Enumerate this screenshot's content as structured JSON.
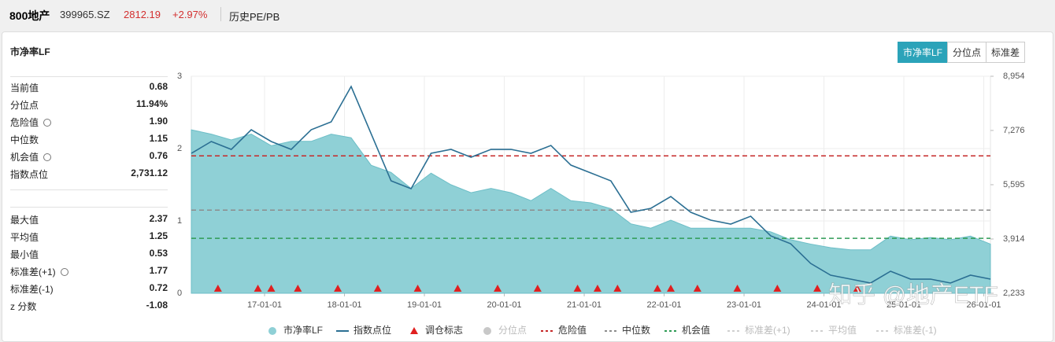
{
  "header": {
    "name": "800地产",
    "code": "399965.SZ",
    "price": "2812.19",
    "change": "+2.97%",
    "tab": "历史PE/PB"
  },
  "panel": {
    "title": "市净率LF",
    "buttons": [
      "市净率LF",
      "分位点",
      "标准差"
    ]
  },
  "stats": {
    "rows": [
      {
        "label": "当前值",
        "value": "0.68"
      },
      {
        "label": "分位点",
        "value": "11.94%"
      },
      {
        "label": "危险值",
        "value": "1.90"
      },
      {
        "label": "中位数",
        "value": "1.15"
      },
      {
        "label": "机会值",
        "value": "0.76"
      },
      {
        "label": "指数点位",
        "value": "2,731.12"
      },
      {
        "label": "最大值",
        "value": "2.37"
      },
      {
        "label": "平均值",
        "value": "1.25"
      },
      {
        "label": "最小值",
        "value": "0.53"
      },
      {
        "label": "标准差(+1)",
        "value": "1.77"
      },
      {
        "label": "标准差(-1)",
        "value": "0.72"
      },
      {
        "label": "z 分数",
        "value": "-1.08"
      }
    ]
  },
  "watermark": "知乎 @地产ETF",
  "chart_data": {
    "type": "line",
    "x": [
      "16-02-01",
      "16-05-01",
      "16-08-01",
      "16-11-01",
      "17-02-01",
      "17-05-01",
      "17-08-01",
      "17-11-01",
      "18-02-01",
      "18-05-01",
      "18-08-01",
      "18-11-01",
      "19-02-01",
      "19-05-01",
      "19-08-01",
      "19-11-01",
      "20-02-01",
      "20-05-01",
      "20-08-01",
      "20-11-01",
      "21-02-01",
      "21-05-01",
      "21-08-01",
      "21-11-01",
      "22-02-01",
      "22-05-01",
      "22-08-01",
      "22-11-01",
      "23-02-01",
      "23-05-01",
      "23-08-01",
      "23-11-01",
      "24-02-01",
      "24-05-01",
      "24-08-01",
      "24-11-01",
      "25-02-01",
      "25-05-01",
      "25-08-01",
      "25-11-01",
      "26-02-01"
    ],
    "series": [
      {
        "name": "市净率LF",
        "kind": "area",
        "color": "#8fd0d6",
        "values": [
          2.26,
          2.2,
          2.12,
          2.2,
          2.04,
          2.1,
          2.1,
          2.2,
          2.15,
          1.77,
          1.67,
          1.45,
          1.66,
          1.5,
          1.39,
          1.45,
          1.39,
          1.28,
          1.45,
          1.28,
          1.25,
          1.17,
          0.96,
          0.9,
          1.01,
          0.9,
          0.9,
          0.9,
          0.9,
          0.85,
          0.74,
          0.68,
          0.63,
          0.6,
          0.6,
          0.79,
          0.74,
          0.77,
          0.74,
          0.79,
          0.68
        ]
      },
      {
        "name": "指数点位",
        "kind": "line",
        "axis": "y2",
        "color": "#2b6f93",
        "values": [
          6567,
          6933,
          6689,
          7298,
          6933,
          6689,
          7298,
          7541,
          8637,
          7176,
          5715,
          5472,
          6567,
          6689,
          6446,
          6689,
          6689,
          6567,
          6811,
          6202,
          5958,
          5715,
          4741,
          4863,
          5228,
          4741,
          4498,
          4376,
          4619,
          4011,
          3767,
          3158,
          2793,
          2671,
          2550,
          2915,
          2671,
          2671,
          2550,
          2793,
          2671
        ]
      }
    ],
    "events": {
      "name": "调仓标志",
      "color": "#e02020",
      "x": [
        "16-06-01",
        "16-12-01",
        "17-02-01",
        "17-06-01",
        "17-12-01",
        "18-06-01",
        "18-12-01",
        "19-06-01",
        "19-12-01",
        "20-06-01",
        "20-12-01",
        "21-03-01",
        "21-06-01",
        "21-12-01",
        "22-02-01",
        "22-06-01",
        "22-12-01",
        "23-06-01",
        "23-12-01",
        "24-06-01"
      ]
    },
    "ref_lines": [
      {
        "name": "危险值",
        "value": 1.9,
        "color": "#c62828"
      },
      {
        "name": "中位数",
        "value": 1.15,
        "color": "#8c8c8c"
      },
      {
        "name": "机会值",
        "value": 0.76,
        "color": "#2e9b55"
      }
    ],
    "inactive_legend": [
      "分位点",
      "标准差(+1)",
      "平均值",
      "标准差(-1)"
    ],
    "xlim": [
      "16-02-01",
      "26-02-01"
    ],
    "xticks": [
      "17-01-01",
      "18-01-01",
      "19-01-01",
      "20-01-01",
      "21-01-01",
      "22-01-01",
      "23-01-01",
      "24-01-01",
      "25-01-01",
      "26-01-01"
    ],
    "ylim": [
      0,
      3
    ],
    "yticks": [
      0,
      1,
      2,
      3
    ],
    "y2lim": [
      2233,
      8954
    ],
    "y2ticks": [
      {
        "value": 2233,
        "label": "2,233"
      },
      {
        "value": 3914,
        "label": "3,914"
      },
      {
        "value": 5595,
        "label": "5,595"
      },
      {
        "value": 7276,
        "label": "7,276"
      },
      {
        "value": 8954,
        "label": "8,954"
      }
    ],
    "grid": true
  }
}
